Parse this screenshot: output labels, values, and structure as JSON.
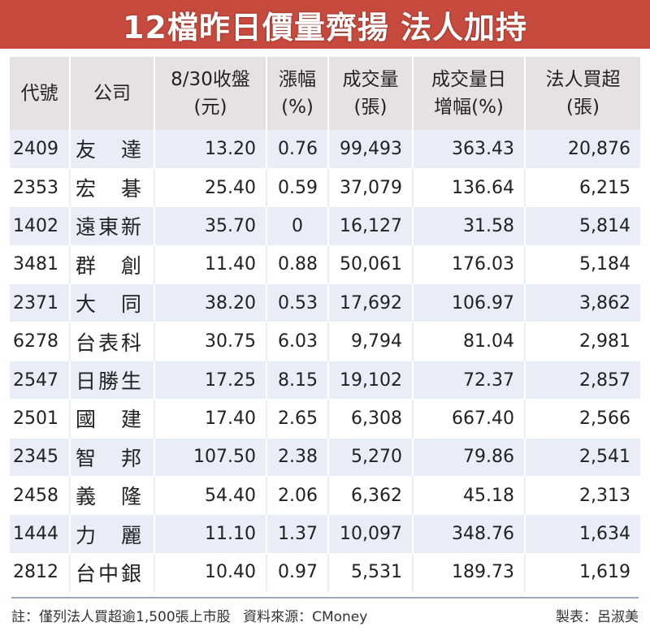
{
  "title": "12檔昨日價量齊揚 法人加持",
  "headers": [
    [
      "代號"
    ],
    [
      "公司"
    ],
    [
      "8/30收盤",
      "(元)"
    ],
    [
      "漲幅",
      "(%)"
    ],
    [
      "成交量",
      "(張)"
    ],
    [
      "成交量日",
      "增幅(%)"
    ],
    [
      "法人買超",
      "(張)"
    ]
  ],
  "rows": [
    {
      "code": "2409",
      "company": "友　達",
      "close": "13.20",
      "change": "0.76",
      "volume": "99,493",
      "vol_growth": "363.43",
      "net_buy": "20,876"
    },
    {
      "code": "2353",
      "company": "宏　碁",
      "close": "25.40",
      "change": "0.59",
      "volume": "37,079",
      "vol_growth": "136.64",
      "net_buy": "6,215"
    },
    {
      "code": "1402",
      "company": "遠東新",
      "close": "35.70",
      "change": "0",
      "volume": "16,127",
      "vol_growth": "31.58",
      "net_buy": "5,814"
    },
    {
      "code": "3481",
      "company": "群　創",
      "close": "11.40",
      "change": "0.88",
      "volume": "50,061",
      "vol_growth": "176.03",
      "net_buy": "5,184"
    },
    {
      "code": "2371",
      "company": "大　同",
      "close": "38.20",
      "change": "0.53",
      "volume": "17,692",
      "vol_growth": "106.97",
      "net_buy": "3,862"
    },
    {
      "code": "6278",
      "company": "台表科",
      "close": "30.75",
      "change": "6.03",
      "volume": "9,794",
      "vol_growth": "81.04",
      "net_buy": "2,981"
    },
    {
      "code": "2547",
      "company": "日勝生",
      "close": "17.25",
      "change": "8.15",
      "volume": "19,102",
      "vol_growth": "72.37",
      "net_buy": "2,857"
    },
    {
      "code": "2501",
      "company": "國　建",
      "close": "17.40",
      "change": "2.65",
      "volume": "6,308",
      "vol_growth": "667.40",
      "net_buy": "2,566"
    },
    {
      "code": "2345",
      "company": "智　邦",
      "close": "107.50",
      "change": "2.38",
      "volume": "5,270",
      "vol_growth": "79.86",
      "net_buy": "2,541"
    },
    {
      "code": "2458",
      "company": "義　隆",
      "close": "54.40",
      "change": "2.06",
      "volume": "6,362",
      "vol_growth": "45.18",
      "net_buy": "2,313"
    },
    {
      "code": "1444",
      "company": "力　麗",
      "close": "11.10",
      "change": "1.37",
      "volume": "10,097",
      "vol_growth": "348.76",
      "net_buy": "1,634"
    },
    {
      "code": "2812",
      "company": "台中銀",
      "close": "10.40",
      "change": "0.97",
      "volume": "5,531",
      "vol_growth": "189.73",
      "net_buy": "1,619"
    }
  ],
  "footer": {
    "note": "註：僅列法人買超逾1,500張上市股",
    "source": "資料來源：CMoney",
    "credit": "製表：呂淑美"
  },
  "colors": {
    "title_bg": "#c64a3e",
    "header_bg": "#e6e2e1",
    "row_stripe": "#e9edf8"
  }
}
